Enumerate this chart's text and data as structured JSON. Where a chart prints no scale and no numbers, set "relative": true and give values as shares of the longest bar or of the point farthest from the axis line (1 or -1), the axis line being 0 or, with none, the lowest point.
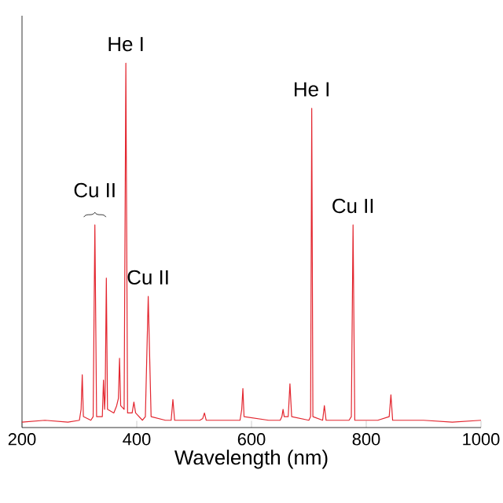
{
  "chart_data": {
    "type": "line",
    "relative": true,
    "xlabel": "Wavelength (nm)",
    "xlim": [
      200,
      1000
    ],
    "xticks": [
      200,
      400,
      600,
      800,
      1000
    ],
    "marker": "none",
    "line_style": "solid",
    "series": [
      {
        "color": "#e3262f",
        "x": [
          200,
          240,
          280,
          300,
          303,
          305,
          307,
          320,
          324,
          327,
          330,
          340,
          342,
          344,
          345,
          347,
          349,
          360,
          365,
          368,
          370,
          372,
          378,
          381,
          384,
          392,
          395,
          398,
          410,
          415,
          420,
          425,
          450,
          460,
          463,
          466,
          510,
          515,
          518,
          521,
          560,
          580,
          583,
          585,
          587,
          630,
          650,
          653,
          655,
          657,
          664,
          667,
          670,
          700,
          703,
          705,
          707,
          724,
          727,
          730,
          770,
          774,
          777,
          780,
          820,
          840,
          843,
          846,
          900,
          950,
          1000
        ],
        "values": [
          0.015,
          0.02,
          0.015,
          0.02,
          0.05,
          0.145,
          0.03,
          0.02,
          0.03,
          0.556,
          0.03,
          0.03,
          0.13,
          0.05,
          0.09,
          0.41,
          0.05,
          0.04,
          0.06,
          0.08,
          0.19,
          0.06,
          0.05,
          1,
          0.04,
          0.04,
          0.07,
          0.04,
          0.02,
          0.03,
          0.36,
          0.03,
          0.02,
          0.02,
          0.077,
          0.02,
          0.02,
          0.025,
          0.04,
          0.02,
          0.02,
          0.02,
          0.05,
          0.107,
          0.03,
          0.02,
          0.02,
          0.03,
          0.05,
          0.03,
          0.03,
          0.12,
          0.03,
          0.02,
          0.03,
          0.876,
          0.03,
          0.02,
          0.06,
          0.02,
          0.02,
          0.03,
          0.556,
          0.02,
          0.02,
          0.03,
          0.09,
          0.02,
          0.02,
          0.015,
          0.02
        ]
      }
    ],
    "annotations": [
      {
        "text": "Cu II",
        "x": 327,
        "y": 0.556
      },
      {
        "text": "He I",
        "x": 381,
        "y": 1
      },
      {
        "text": "Cu II",
        "x": 420,
        "y": 0.36
      },
      {
        "text": "He I",
        "x": 705,
        "y": 0.876
      },
      {
        "text": "Cu II",
        "x": 777,
        "y": 0.556
      }
    ]
  }
}
